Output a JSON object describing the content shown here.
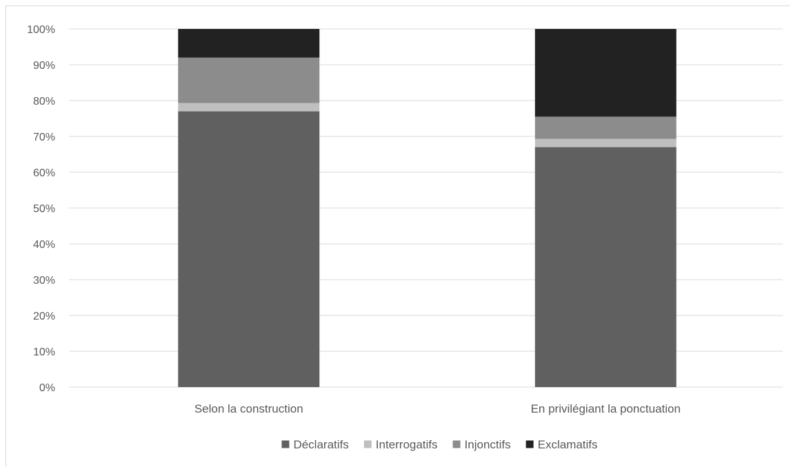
{
  "chart_data": {
    "type": "bar",
    "stacked": true,
    "percent_stacked": true,
    "categories": [
      "Selon la construction",
      "En privilégiant la ponctuation"
    ],
    "series": [
      {
        "name": "Déclaratifs",
        "color": "#606060",
        "values": [
          77,
          67
        ]
      },
      {
        "name": "Interrogatifs",
        "color": "#bfbfbf",
        "values": [
          2.3,
          2.3
        ]
      },
      {
        "name": "Injonctifs",
        "color": "#8c8c8c",
        "values": [
          12.7,
          6.2
        ]
      },
      {
        "name": "Exclamatifs",
        "color": "#222222",
        "values": [
          8,
          24.5
        ]
      }
    ],
    "y_ticks": [
      "0%",
      "10%",
      "20%",
      "30%",
      "40%",
      "50%",
      "60%",
      "70%",
      "80%",
      "90%",
      "100%"
    ],
    "ylim": [
      0,
      100
    ],
    "grid": true,
    "legend_position": "bottom"
  }
}
